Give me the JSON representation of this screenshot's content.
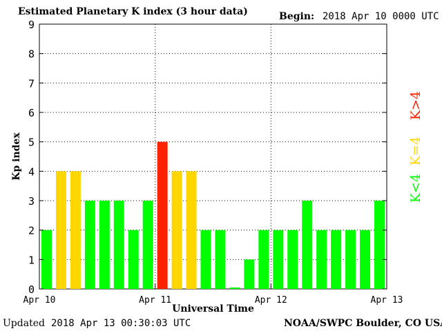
{
  "header": {
    "title": "Estimated Planetary K index (3 hour data)",
    "begin_label": "Begin:",
    "begin_value": "2018 Apr 10 0000 UTC"
  },
  "footer": {
    "updated_label": "Updated",
    "updated_value": "2018 Apr 13 00:30:03 UTC",
    "credit": "NOAA/SWPC Boulder, CO USA"
  },
  "chart_data": {
    "type": "bar",
    "title": "Estimated Planetary K index (3 hour data)",
    "xlabel": "Universal Time",
    "ylabel": "Kp index",
    "ylim": [
      0,
      9
    ],
    "yticks": [
      "0",
      "1",
      "2",
      "3",
      "4",
      "5",
      "6",
      "7",
      "8",
      "9"
    ],
    "xticks": [
      "Apr 10",
      "Apr 11",
      "Apr 12",
      "Apr 13"
    ],
    "grid": true,
    "values": [
      2,
      4,
      4,
      3,
      3,
      3,
      2,
      3,
      5,
      4,
      4,
      2,
      2,
      0.05,
      1,
      2,
      2,
      2,
      3,
      2,
      2,
      2,
      2,
      3
    ],
    "colors": {
      "below4": "#00ff00",
      "equal4": "#ffd700",
      "above4": "#ff2200"
    },
    "legend": [
      {
        "label": "K<4",
        "color": "#00ff00"
      },
      {
        "label": "K=4",
        "color": "#ffd700"
      },
      {
        "label": "K>4",
        "color": "#ff2200"
      }
    ]
  }
}
